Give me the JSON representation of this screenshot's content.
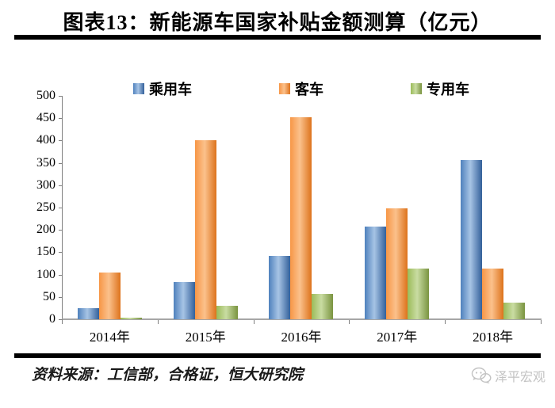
{
  "title": "图表13：新能源车国家补贴金额测算（亿元）",
  "source_line": "资料来源：工信部，合格证，恒大研究院",
  "watermark": "泽平宏观",
  "colors": {
    "rule": "#000000",
    "axis": "#7f7f7f",
    "watermark_gray": "#c3c3c3"
  },
  "chart_data": {
    "type": "bar",
    "title": "图表13：新能源车国家补贴金额测算（亿元）",
    "categories": [
      "2014年",
      "2015年",
      "2016年",
      "2017年",
      "2018年"
    ],
    "series": [
      {
        "name": "乘用车",
        "color": "#4F81BD",
        "color_light": "#A7C4E5",
        "color_dark": "#33609A",
        "values": [
          25,
          84,
          142,
          207,
          357
        ]
      },
      {
        "name": "客车",
        "color": "#F79646",
        "color_light": "#FBC18C",
        "color_dark": "#DD731C",
        "values": [
          104,
          400,
          452,
          248,
          114
        ]
      },
      {
        "name": "专用车",
        "color": "#9BBB59",
        "color_light": "#C9DCA2",
        "color_dark": "#7A9440",
        "values": [
          4,
          30,
          57,
          113,
          38
        ]
      }
    ],
    "xlabel": "",
    "ylabel": "",
    "ylim": [
      0,
      500
    ],
    "y_ticks": [
      0,
      50,
      100,
      150,
      200,
      250,
      300,
      350,
      400,
      450,
      500
    ],
    "legend_position": "top",
    "grid": false
  }
}
